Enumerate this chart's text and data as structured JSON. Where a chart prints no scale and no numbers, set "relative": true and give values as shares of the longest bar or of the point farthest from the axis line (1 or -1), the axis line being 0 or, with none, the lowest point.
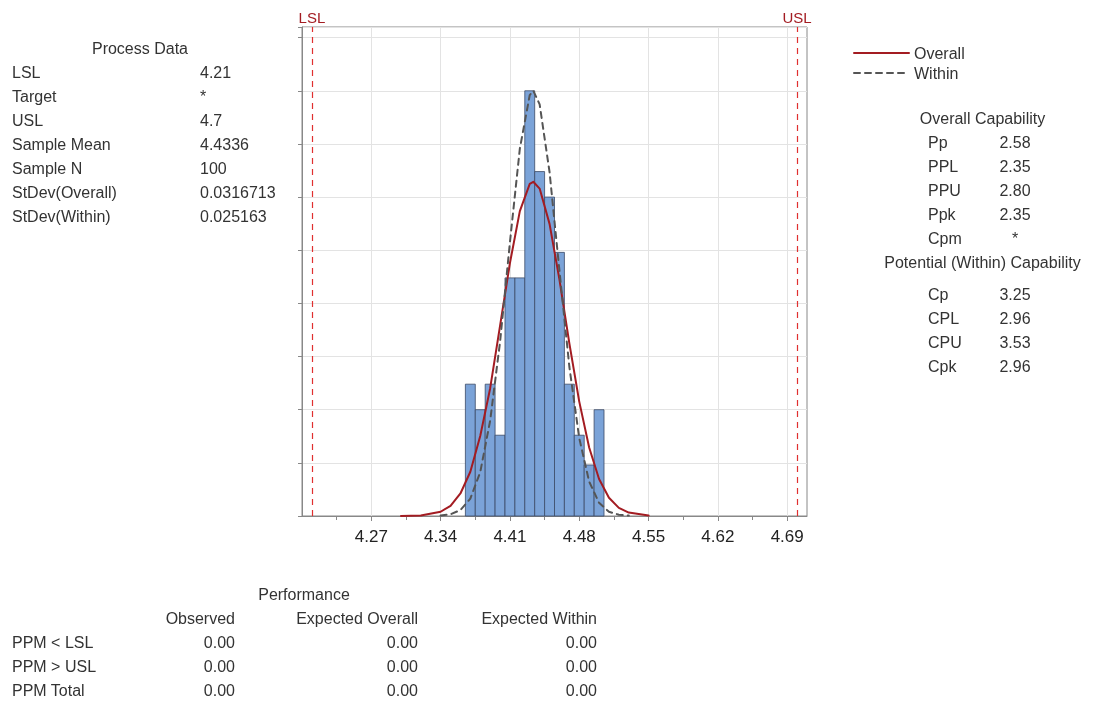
{
  "chart_data": {
    "type": "histogram",
    "relative": true,
    "bins": [
      4.365,
      4.375,
      4.385,
      4.395,
      4.405,
      4.415,
      4.425,
      4.435,
      4.445,
      4.455,
      4.465,
      4.475,
      4.485,
      4.495,
      4.505
    ],
    "values": [
      0.31,
      0.25,
      0.31,
      0.19,
      0.56,
      0.56,
      1,
      0.81,
      0.75,
      0.62,
      0.31,
      0.19,
      0.12,
      0.25
    ],
    "color": "#7ba3d8",
    "series": [
      {
        "name": "Overall",
        "type": "line",
        "color": "#a31c22",
        "line_style": "solid",
        "x": [
          4.3,
          4.32,
          4.34,
          4.35,
          4.36,
          4.37,
          4.38,
          4.39,
          4.4,
          4.41,
          4.42,
          4.43,
          4.4336,
          4.44,
          4.45,
          4.46,
          4.47,
          4.48,
          4.49,
          4.5,
          4.51,
          4.52,
          4.53,
          4.55
        ],
        "values": [
          0,
          0.001,
          0.01,
          0.024,
          0.053,
          0.104,
          0.188,
          0.3,
          0.447,
          0.595,
          0.717,
          0.781,
          0.786,
          0.77,
          0.687,
          0.556,
          0.406,
          0.269,
          0.161,
          0.087,
          0.043,
          0.019,
          0.008,
          0.001
        ]
      },
      {
        "name": "Within",
        "type": "line",
        "color": "#555555",
        "line_style": "dashed",
        "x": [
          4.34,
          4.35,
          4.36,
          4.37,
          4.38,
          4.39,
          4.4,
          4.41,
          4.42,
          4.43,
          4.4336,
          4.44,
          4.45,
          4.46,
          4.47,
          4.48,
          4.49,
          4.5,
          4.51,
          4.52,
          4.53
        ],
        "values": [
          0.001,
          0.004,
          0.014,
          0.041,
          0.103,
          0.224,
          0.409,
          0.644,
          0.864,
          0.99,
          1,
          0.968,
          0.809,
          0.577,
          0.351,
          0.183,
          0.081,
          0.031,
          0.01,
          0.003,
          0.001
        ]
      }
    ],
    "xlim": [
      4.2,
      4.71
    ],
    "xticks": [
      4.27,
      4.34,
      4.41,
      4.48,
      4.55,
      4.62,
      4.69,
      {
        "value": 4.235,
        "label": null
      },
      {
        "value": 4.305,
        "label": null
      },
      {
        "value": 4.375,
        "label": null
      },
      {
        "value": 4.445,
        "label": null
      },
      {
        "value": 4.515,
        "label": null
      },
      {
        "value": 4.585,
        "label": null
      },
      {
        "value": 4.655,
        "label": null
      }
    ],
    "ref_lines": [
      {
        "axis": "x",
        "value": 4.21,
        "label": "LSL",
        "color": "#e03030",
        "line_style": "dashed"
      },
      {
        "axis": "x",
        "value": 4.7,
        "label": "USL",
        "color": "#e03030",
        "line_style": "dashed"
      }
    ],
    "grid": true,
    "legend": "top right",
    "marker": "none",
    "annotations": [
      "Process Data",
      "LSL\t4.21",
      "Target\t*",
      "USL\t4.7",
      "Sample Mean\t4.4336",
      "Sample N\t100",
      "StDev(Overall)\t0.0316713",
      "StDev(Within)\t0.025163",
      "Overall Capability",
      "Pp\t2.58",
      "PPL\t2.35",
      "PPU\t2.80",
      "Ppk\t2.35",
      "Cpm\t*",
      "Potential (Within) Capability",
      "Cp\t3.25",
      "CPL\t2.96",
      "CPU\t3.53",
      "Cpk\t2.96",
      "Performance",
      "\tObserved\tExpected Overall\tExpected Within",
      "PPM < LSL\t0.00\t0.00\t0.00",
      "PPM > USL\t0.00\t0.00\t0.00",
      "PPM Total\t0.00\t0.00\t0.00"
    ]
  }
}
